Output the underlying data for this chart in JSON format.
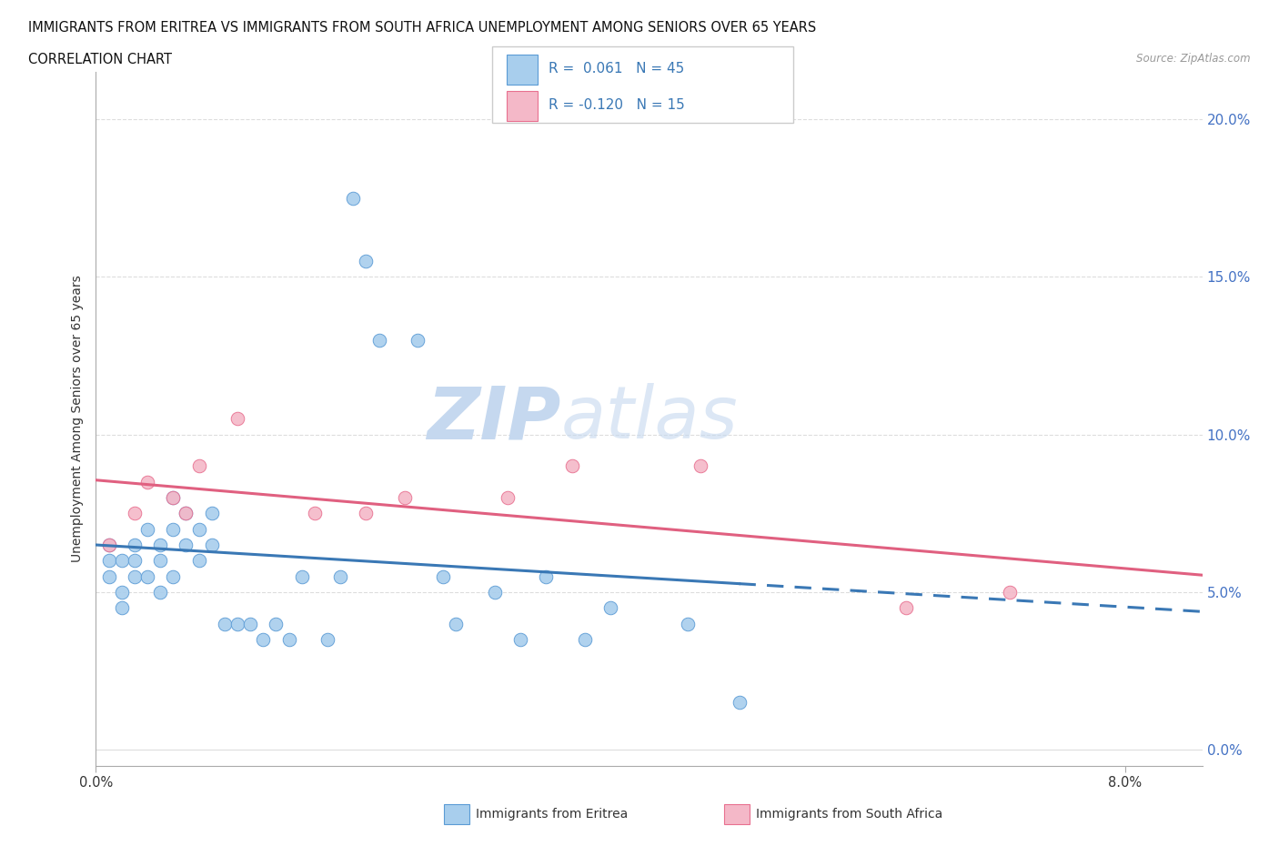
{
  "title_line1": "IMMIGRANTS FROM ERITREA VS IMMIGRANTS FROM SOUTH AFRICA UNEMPLOYMENT AMONG SENIORS OVER 65 YEARS",
  "title_line2": "CORRELATION CHART",
  "source_text": "Source: ZipAtlas.com",
  "ylabel": "Unemployment Among Seniors over 65 years",
  "watermark_zip": "ZIP",
  "watermark_atlas": "atlas",
  "legend_eritrea_R": "0.061",
  "legend_eritrea_N": "45",
  "legend_sa_R": "-0.120",
  "legend_sa_N": "15",
  "yticks": [
    0.0,
    0.05,
    0.1,
    0.15,
    0.2
  ],
  "ytick_labels": [
    "0.0%",
    "5.0%",
    "10.0%",
    "15.0%",
    "20.0%"
  ],
  "xlim": [
    0.0,
    0.086
  ],
  "ylim": [
    -0.005,
    0.215
  ],
  "color_eritrea_fill": "#A8CEED",
  "color_eritrea_edge": "#5B9BD5",
  "color_eritrea_line": "#3A78B5",
  "color_sa_fill": "#F4B8C8",
  "color_sa_edge": "#E87090",
  "color_sa_line": "#E06080",
  "background_color": "#FFFFFF",
  "grid_color": "#DDDDDD",
  "eritrea_x": [
    0.001,
    0.001,
    0.001,
    0.002,
    0.002,
    0.002,
    0.003,
    0.003,
    0.003,
    0.004,
    0.004,
    0.005,
    0.005,
    0.005,
    0.006,
    0.006,
    0.006,
    0.007,
    0.007,
    0.008,
    0.008,
    0.009,
    0.009,
    0.01,
    0.011,
    0.012,
    0.013,
    0.014,
    0.015,
    0.016,
    0.018,
    0.019,
    0.02,
    0.021,
    0.022,
    0.025,
    0.027,
    0.028,
    0.031,
    0.033,
    0.035,
    0.038,
    0.04,
    0.046,
    0.05
  ],
  "eritrea_y": [
    0.065,
    0.055,
    0.06,
    0.06,
    0.05,
    0.045,
    0.065,
    0.06,
    0.055,
    0.055,
    0.07,
    0.065,
    0.05,
    0.06,
    0.055,
    0.08,
    0.07,
    0.075,
    0.065,
    0.06,
    0.07,
    0.065,
    0.075,
    0.04,
    0.04,
    0.04,
    0.035,
    0.04,
    0.035,
    0.055,
    0.035,
    0.055,
    0.175,
    0.155,
    0.13,
    0.13,
    0.055,
    0.04,
    0.05,
    0.035,
    0.055,
    0.035,
    0.045,
    0.04,
    0.015
  ],
  "sa_x": [
    0.001,
    0.003,
    0.004,
    0.006,
    0.007,
    0.008,
    0.011,
    0.017,
    0.021,
    0.024,
    0.032,
    0.037,
    0.047,
    0.063,
    0.071
  ],
  "sa_y": [
    0.065,
    0.075,
    0.085,
    0.08,
    0.075,
    0.09,
    0.105,
    0.075,
    0.075,
    0.08,
    0.08,
    0.09,
    0.09,
    0.045,
    0.05
  ]
}
